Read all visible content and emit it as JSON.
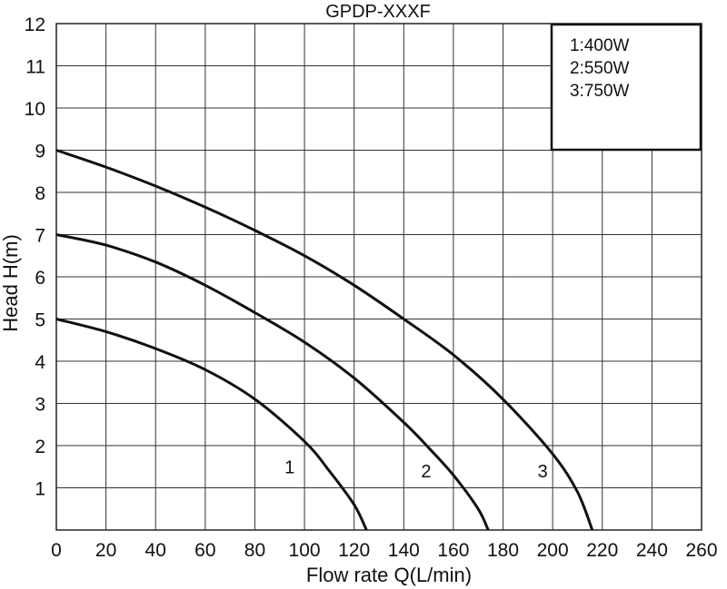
{
  "chart_data": {
    "type": "line",
    "title": "GPDP-XXXF",
    "xlabel": "Flow rate Q(L/min)",
    "ylabel": "Head H(m)",
    "xlim": [
      0,
      260
    ],
    "ylim": [
      0,
      12
    ],
    "x_ticks": [
      0,
      20,
      40,
      60,
      80,
      100,
      120,
      140,
      160,
      180,
      200,
      220,
      240,
      260
    ],
    "y_ticks": [
      1,
      2,
      3,
      4,
      5,
      6,
      7,
      8,
      9,
      10,
      11,
      12
    ],
    "grid": true,
    "legend_position": "top-right",
    "legend": [
      "1:400W",
      "2:550W",
      "3:750W"
    ],
    "series": [
      {
        "name": "1",
        "x": [
          0,
          20,
          40,
          60,
          80,
          100,
          110,
          120,
          125
        ],
        "y": [
          5,
          4.7,
          4.3,
          3.8,
          3.1,
          2.1,
          1.4,
          0.6,
          0
        ]
      },
      {
        "name": "2",
        "x": [
          0,
          20,
          40,
          60,
          80,
          100,
          120,
          140,
          150,
          160,
          170,
          174
        ],
        "y": [
          7,
          6.75,
          6.35,
          5.8,
          5.15,
          4.45,
          3.6,
          2.55,
          1.95,
          1.3,
          0.5,
          0
        ]
      },
      {
        "name": "3",
        "x": [
          0,
          20,
          40,
          60,
          80,
          100,
          120,
          140,
          160,
          180,
          200,
          210,
          216
        ],
        "y": [
          9,
          8.6,
          8.15,
          7.65,
          7.1,
          6.5,
          5.8,
          5.0,
          4.15,
          3.1,
          1.8,
          0.9,
          0
        ]
      }
    ],
    "curve_labels": [
      {
        "text": "1",
        "x": 94,
        "y": 1.5
      },
      {
        "text": "2",
        "x": 149,
        "y": 1.4
      },
      {
        "text": "3",
        "x": 196,
        "y": 1.4
      }
    ]
  }
}
